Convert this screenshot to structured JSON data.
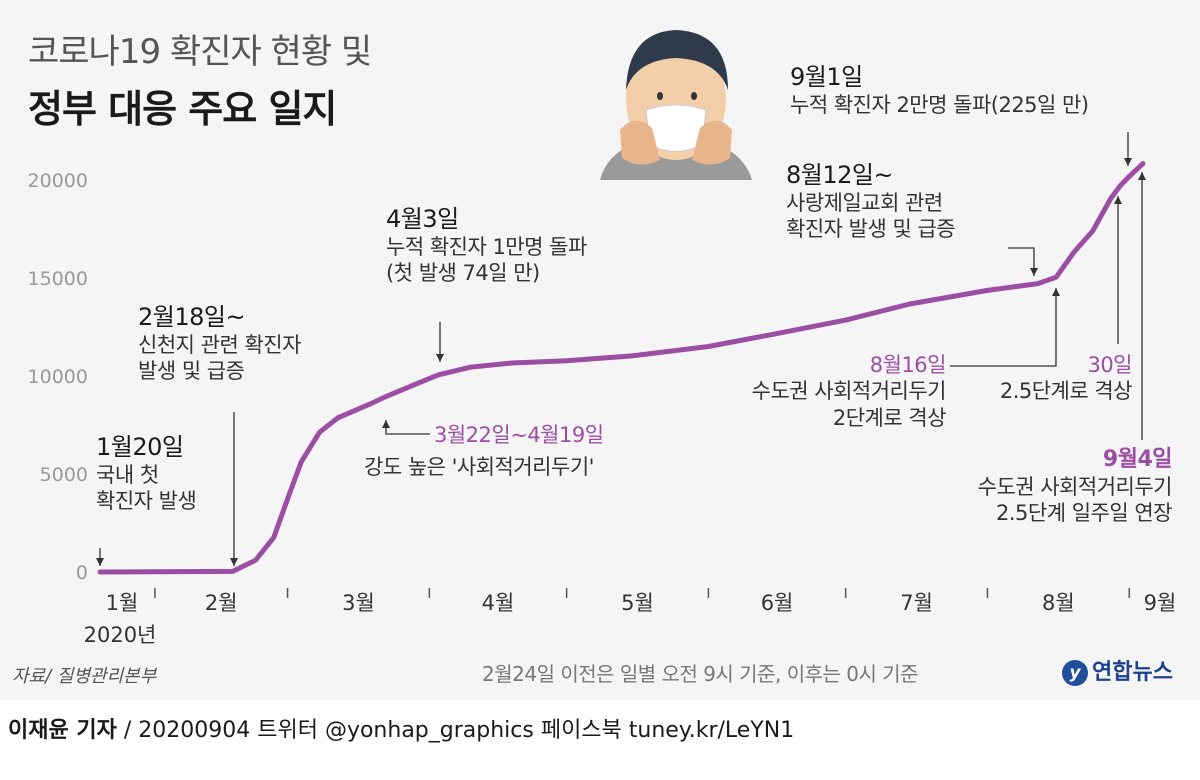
{
  "header": {
    "title_line1": "코로나19 확진자 현황 및",
    "title_line2": "정부 대응 주요 일지"
  },
  "chart_data": {
    "type": "line",
    "title": "코로나19 확진자 현황 및 정부 대응 주요 일지",
    "xlabel": "",
    "ylabel": "",
    "ylim": [
      0,
      20000
    ],
    "yticks": [
      "0",
      "5000",
      "10000",
      "15000",
      "20000"
    ],
    "month_labels": [
      "1월",
      "2월",
      "3월",
      "4월",
      "5월",
      "6월",
      "7월",
      "8월",
      "9월"
    ],
    "year_label": "2020년",
    "series_color": "#9b4ea3",
    "grid": false,
    "series": [
      {
        "x": [
          "2020-01-20",
          "2020-02-18",
          "2020-02-23",
          "2020-02-27",
          "2020-03-01",
          "2020-03-04",
          "2020-03-08",
          "2020-03-12",
          "2020-03-19",
          "2020-03-22",
          "2020-03-29",
          "2020-04-03",
          "2020-04-10",
          "2020-04-19",
          "2020-05-01",
          "2020-05-15",
          "2020-06-01",
          "2020-06-15",
          "2020-07-01",
          "2020-07-15",
          "2020-08-01",
          "2020-08-12",
          "2020-08-16",
          "2020-08-20",
          "2020-08-24",
          "2020-08-28",
          "2020-08-30",
          "2020-09-01",
          "2020-09-04"
        ],
        "values": [
          1,
          31,
          602,
          1766,
          3736,
          5621,
          7134,
          7869,
          8565,
          8897,
          9583,
          10062,
          10450,
          10661,
          10780,
          11018,
          11503,
          12121,
          12850,
          13672,
          14366,
          14714,
          15039,
          16346,
          17399,
          19077,
          19699,
          20182,
          20842
        ]
      }
    ]
  },
  "annotations": {
    "jan20": {
      "date": "1월20일",
      "lines": [
        "국내 첫",
        "확진자 발생"
      ]
    },
    "feb18": {
      "date": "2월18일~",
      "lines": [
        "신천지 관련 확진자",
        "발생 및 급증"
      ]
    },
    "mar22": {
      "date": "3월22일~4월19일",
      "lines": [
        "강도 높은 '사회적거리두기'"
      ]
    },
    "apr3": {
      "date": "4월3일",
      "lines": [
        "누적 확진자 1만명 돌파",
        "(첫 발생 74일 만)"
      ]
    },
    "aug12": {
      "date": "8월12일~",
      "lines": [
        "사랑제일교회 관련",
        "확진자 발생 및 급증"
      ]
    },
    "aug16": {
      "date": "8월16일",
      "lines": [
        "수도권 사회적거리두기",
        "2단계로 격상"
      ]
    },
    "aug30": {
      "date": "30일",
      "lines": [
        "2.5단계로 격상"
      ]
    },
    "sep1": {
      "date": "9월1일",
      "lines": [
        "누적 확진자 2만명 돌파(225일 만)"
      ]
    },
    "sep4": {
      "date": "9월4일",
      "lines": [
        "수도권 사회적거리두기",
        "2.5단계 일주일 연장"
      ]
    }
  },
  "footer": {
    "source": "자료/ 질병관리본부",
    "note": "2월24일 이전은 일별 오전 9시 기준, 이후는 0시 기준",
    "logo": "연합뉴스",
    "credit_name": "이재윤 기자",
    "credit_rest": " / 20200904   트위터 @yonhap_graphics  페이스북 tuney.kr/LeYN1"
  }
}
